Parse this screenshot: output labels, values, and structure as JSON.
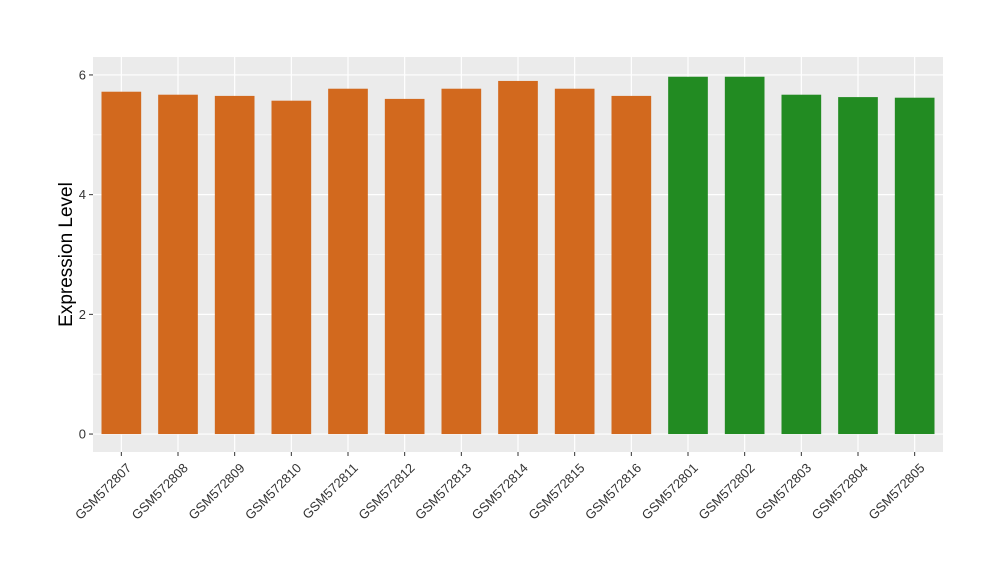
{
  "chart_data": {
    "type": "bar",
    "title": "",
    "xlabel": "",
    "ylabel": "Expression Level",
    "ylim": [
      -0.3,
      6.3
    ],
    "yticks": [
      0,
      2,
      4,
      6
    ],
    "grid": true,
    "legend": "none",
    "categories": [
      "GSM572807",
      "GSM572808",
      "GSM572809",
      "GSM572810",
      "GSM572811",
      "GSM572812",
      "GSM572813",
      "GSM572814",
      "GSM572815",
      "GSM572816",
      "GSM572801",
      "GSM572802",
      "GSM572803",
      "GSM572804",
      "GSM572805"
    ],
    "values": [
      5.72,
      5.67,
      5.65,
      5.57,
      5.77,
      5.6,
      5.77,
      5.9,
      5.77,
      5.65,
      5.97,
      5.97,
      5.67,
      5.63,
      5.62
    ],
    "bar_colors": [
      "#d2691e",
      "#d2691e",
      "#d2691e",
      "#d2691e",
      "#d2691e",
      "#d2691e",
      "#d2691e",
      "#d2691e",
      "#d2691e",
      "#d2691e",
      "#228b22",
      "#228b22",
      "#228b22",
      "#228b22",
      "#228b22"
    ],
    "panel_color": "#ebebeb",
    "grid_color": "#ffffff"
  }
}
